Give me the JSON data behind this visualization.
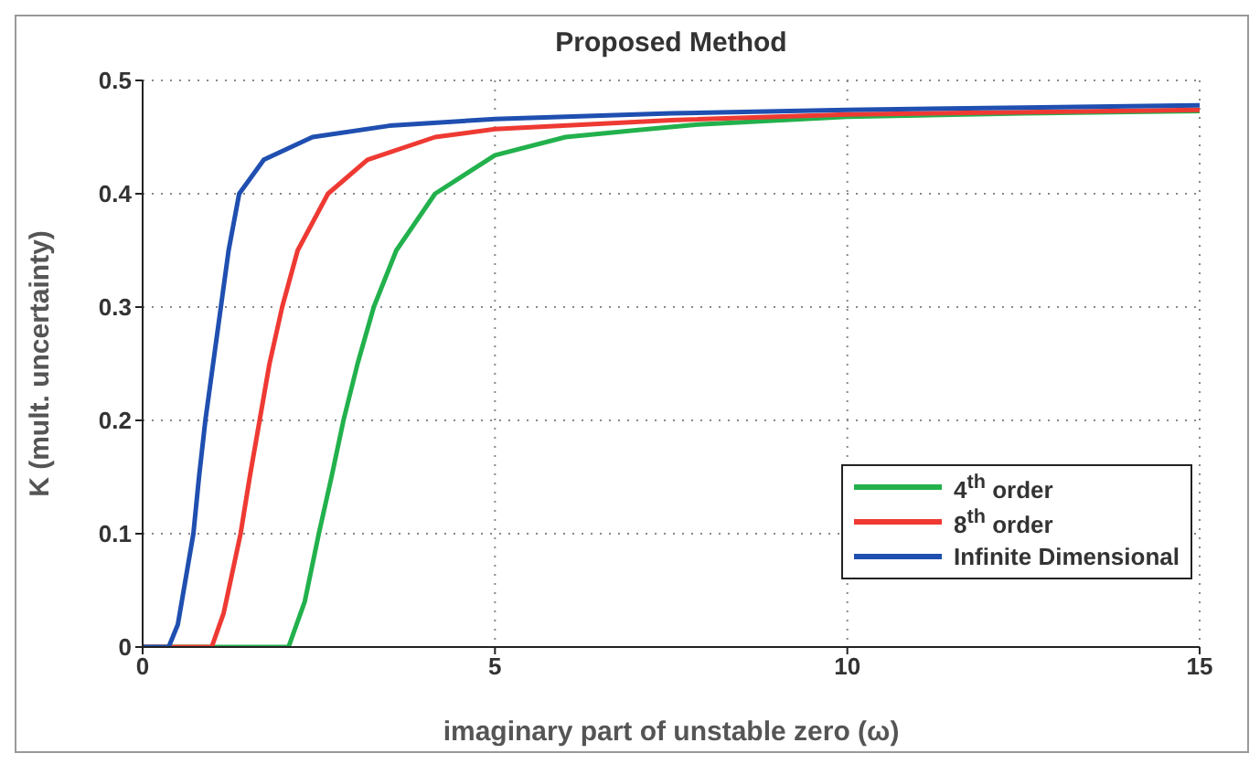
{
  "chart_data": {
    "type": "line",
    "title": "Proposed Method",
    "xlabel": "imaginary part of unstable zero (ω)",
    "ylabel": "K (mult. uncertainty)",
    "xlim": [
      0,
      15
    ],
    "xticks": [
      0,
      5,
      10,
      15
    ],
    "ylim": [
      0,
      0.5
    ],
    "yticks": [
      0,
      0.1,
      0.2,
      0.3,
      0.4,
      0.5
    ],
    "grid": true,
    "legend": "bottom right",
    "marker": "none",
    "line_style": "solid",
    "series": [
      {
        "name": "4$^{th}$ order",
        "color": "#22b14c",
        "x": [
          0,
          1,
          2.07,
          2.3,
          2.5,
          2.68,
          2.85,
          3.05,
          3.28,
          3.6,
          4.15,
          5,
          6,
          7,
          7.88,
          10,
          12.5,
          15
        ],
        "values": [
          0,
          0,
          0,
          0.04,
          0.1,
          0.15,
          0.2,
          0.25,
          0.3,
          0.35,
          0.4,
          0.434,
          0.45,
          0.456,
          0.461,
          0.468,
          0.471,
          0.473
        ]
      },
      {
        "name": "8$^{th}$ order",
        "color": "#ee3a33",
        "x": [
          0,
          0.5,
          0.98,
          1.15,
          1.39,
          1.52,
          1.66,
          1.8,
          1.98,
          2.2,
          2.63,
          3.19,
          4.15,
          5,
          7.5,
          10,
          12.5,
          15
        ],
        "values": [
          0,
          0,
          0,
          0.03,
          0.1,
          0.15,
          0.2,
          0.25,
          0.3,
          0.35,
          0.4,
          0.43,
          0.45,
          0.457,
          0.465,
          0.47,
          0.472,
          0.474
        ]
      },
      {
        "name": "Infinite Dimensional",
        "color": "#1f4fb0",
        "x": [
          0,
          0.37,
          0.5,
          0.72,
          0.8,
          0.89,
          1,
          1.11,
          1.22,
          1.37,
          1.72,
          2.41,
          3.5,
          5,
          7.5,
          10,
          12.5,
          15
        ],
        "values": [
          0,
          0,
          0.02,
          0.1,
          0.15,
          0.2,
          0.25,
          0.3,
          0.35,
          0.4,
          0.43,
          0.45,
          0.46,
          0.466,
          0.471,
          0.474,
          0.476,
          0.478
        ]
      }
    ]
  }
}
